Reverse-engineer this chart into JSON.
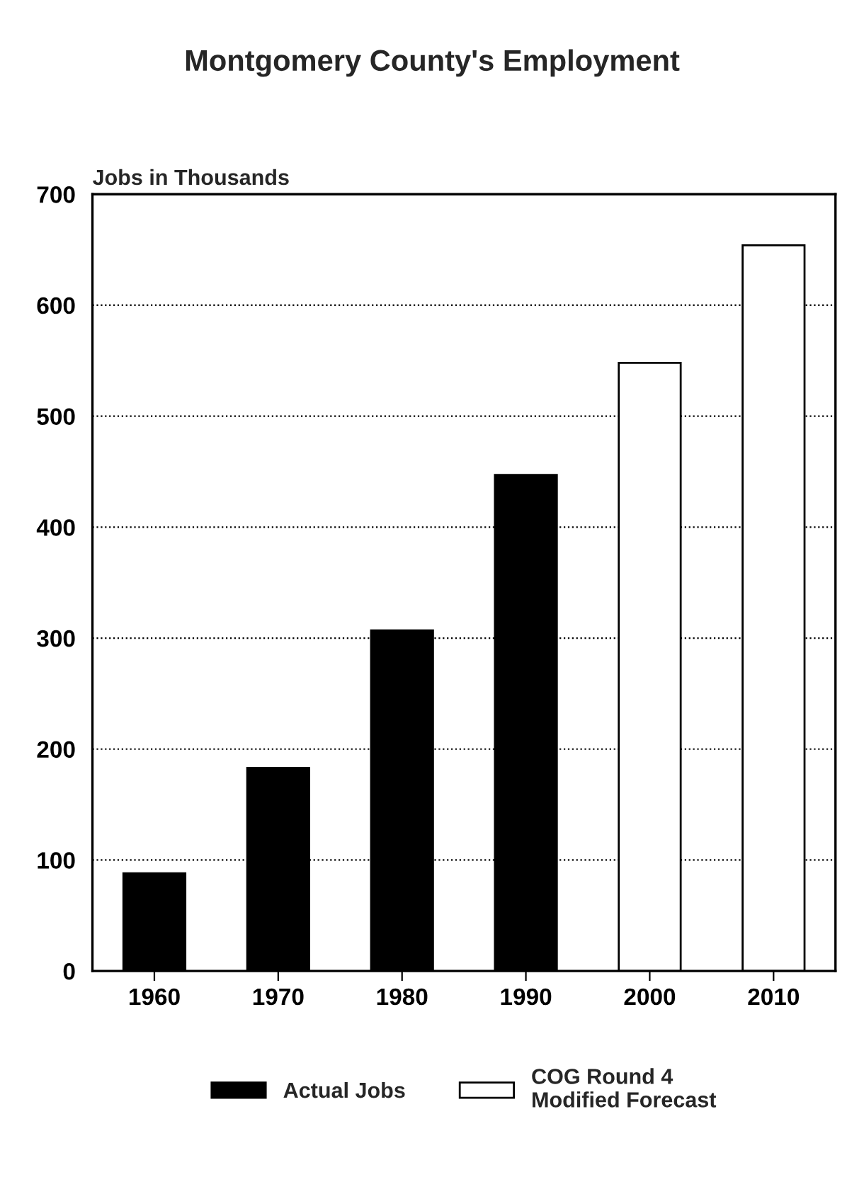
{
  "chart_data": {
    "type": "bar",
    "title": "Montgomery County's Employment",
    "ylabel": "Jobs in Thousands",
    "categories": [
      "1960",
      "1970",
      "1980",
      "1990",
      "2000",
      "2010"
    ],
    "series": [
      {
        "name": "Actual Jobs",
        "color": "#000000",
        "values": [
          88,
          183,
          307,
          447,
          null,
          null
        ]
      },
      {
        "name": "COG Round 4\nModified Forecast",
        "color": "#ffffff",
        "values": [
          null,
          null,
          null,
          null,
          548,
          654
        ]
      }
    ],
    "ylim": [
      0,
      700
    ],
    "yticks": [
      0,
      100,
      200,
      300,
      400,
      500,
      600,
      700
    ],
    "grid": "y",
    "legend": "bottom"
  }
}
